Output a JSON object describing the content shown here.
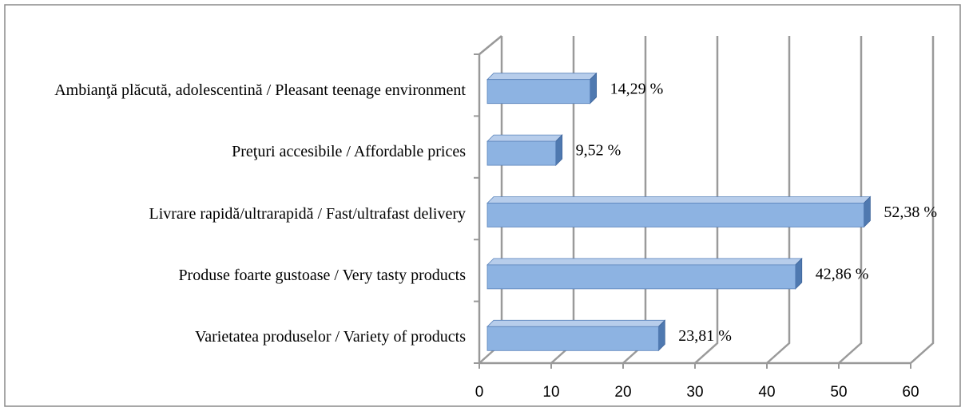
{
  "chart_data": {
    "type": "bar3d_horizontal",
    "categories": [
      "Ambianţă plăcută, adolescentină / Pleasant teenage environment",
      "Preţuri accesibile / Affordable prices",
      "Livrare rapidă/ultrarapidă / Fast/ultrafast delivery",
      "Produse foarte gustoase / Very tasty products",
      "Varietatea produselor / Variety of products"
    ],
    "values": [
      14.29,
      9.52,
      52.38,
      42.86,
      23.81
    ],
    "value_labels": [
      "14,29 %",
      "9,52 %",
      "52,38 %",
      "42,86 %",
      "23,81 %"
    ],
    "color": "#8db3e2",
    "xlim": [
      0,
      60
    ],
    "xticks": [
      0,
      10,
      20,
      30,
      40,
      50,
      60
    ],
    "grid": true
  }
}
